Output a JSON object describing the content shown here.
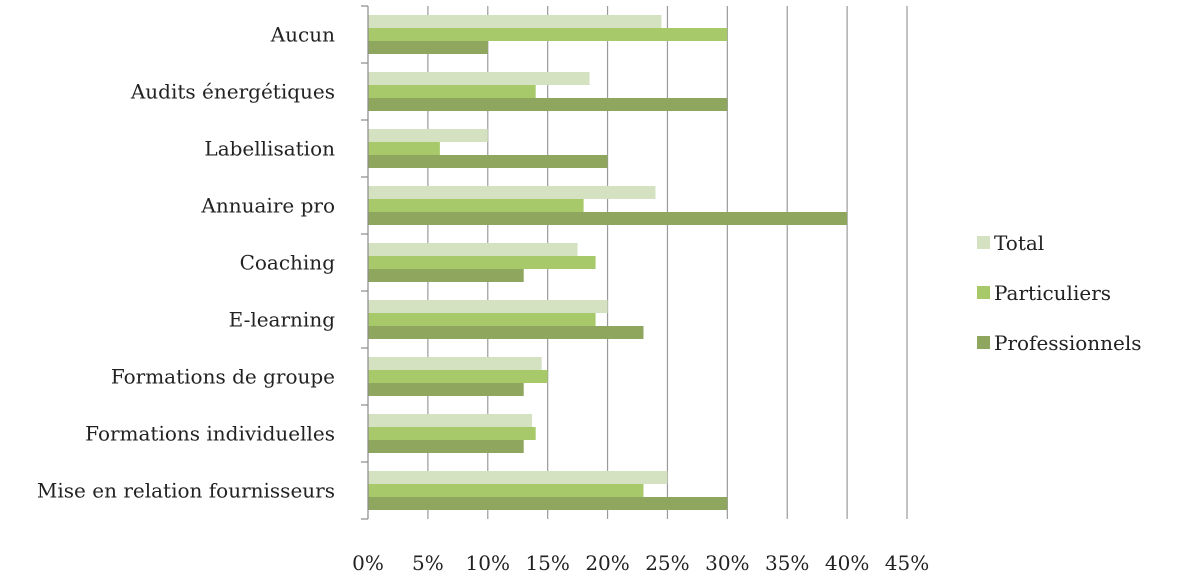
{
  "chart_data": {
    "type": "bar",
    "orientation": "horizontal",
    "categories": [
      "Aucun",
      "Audits énergétiques",
      "Labellisation",
      "Annuaire pro",
      "Coaching",
      "E-learning",
      "Formations de groupe",
      "Formations individuelles",
      "Mise en relation fournisseurs"
    ],
    "series": [
      {
        "name": "Total",
        "color": "#d4e2c1",
        "values": [
          24.5,
          18.5,
          10,
          24,
          17.5,
          20,
          14.5,
          13.7,
          25
        ]
      },
      {
        "name": "Particuliers",
        "color": "#a8c96a",
        "values": [
          30,
          14,
          6,
          18,
          19,
          19,
          15,
          14,
          23
        ]
      },
      {
        "name": "Professionnels",
        "color": "#8fa65e",
        "values": [
          10,
          30,
          20,
          40,
          13,
          23,
          13,
          13,
          30
        ]
      }
    ],
    "xlim": [
      0,
      45
    ],
    "xticks": [
      "0%",
      "5%",
      "10%",
      "15%",
      "20%",
      "25%",
      "30%",
      "35%",
      "40%",
      "45%"
    ],
    "grid": true,
    "legend_position": "right"
  }
}
